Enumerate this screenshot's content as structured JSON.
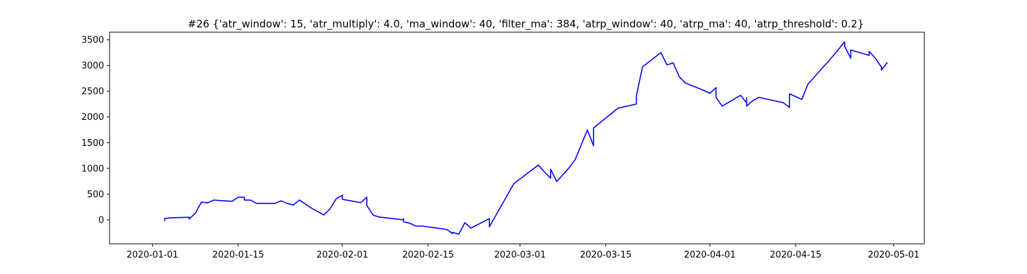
{
  "chart_data": {
    "type": "line",
    "title": "#26 {'atr_window': 15, 'atr_multiply': 4.0, 'ma_window': 40, 'filter_ma': 384, 'atrp_window': 40, 'atrp_ma': 40, 'atrp_threshold': 0.2}",
    "x": [
      "2020-01-03",
      "2020-01-03",
      "2020-01-03",
      "2020-01-04",
      "2020-01-07",
      "2020-01-07",
      "2020-01-08",
      "2020-01-09",
      "2020-01-10",
      "2020-01-11",
      "2020-01-14",
      "2020-01-15",
      "2020-01-16",
      "2020-01-16",
      "2020-01-17",
      "2020-01-18",
      "2020-01-21",
      "2020-01-22",
      "2020-01-23",
      "2020-01-24",
      "2020-01-25",
      "2020-01-27",
      "2020-01-29",
      "2020-01-30",
      "2020-01-31",
      "2020-02-01",
      "2020-02-01",
      "2020-02-04",
      "2020-02-05",
      "2020-02-05",
      "2020-02-05",
      "2020-02-06",
      "2020-02-07",
      "2020-02-11",
      "2020-02-11",
      "2020-02-11",
      "2020-02-12",
      "2020-02-13",
      "2020-02-14",
      "2020-02-18",
      "2020-02-19",
      "2020-02-19",
      "2020-02-20",
      "2020-02-21",
      "2020-02-22",
      "2020-02-25",
      "2020-02-25",
      "2020-02-29",
      "2020-03-04",
      "2020-03-05",
      "2020-03-06",
      "2020-03-06",
      "2020-03-07",
      "2020-03-09",
      "2020-03-10",
      "2020-03-12",
      "2020-03-13",
      "2020-03-13",
      "2020-03-17",
      "2020-03-20",
      "2020-03-20",
      "2020-03-21",
      "2020-03-24",
      "2020-03-25",
      "2020-03-26",
      "2020-03-27",
      "2020-03-28",
      "2020-03-31",
      "2020-04-01",
      "2020-04-02",
      "2020-04-02",
      "2020-04-03",
      "2020-04-06",
      "2020-04-07",
      "2020-04-07",
      "2020-04-07",
      "2020-04-08",
      "2020-04-09",
      "2020-04-13",
      "2020-04-14",
      "2020-04-14",
      "2020-04-14",
      "2020-04-14",
      "2020-04-16",
      "2020-04-17",
      "2020-04-21",
      "2020-04-23",
      "2020-04-23",
      "2020-04-24",
      "2020-04-24",
      "2020-04-27",
      "2020-04-27",
      "2020-04-28",
      "2020-04-29",
      "2020-04-29",
      "2020-04-30"
    ],
    "series": [
      {
        "color": "#0000ff",
        "values": [
          0,
          -15,
          25,
          40,
          50,
          15,
          130,
          345,
          330,
          385,
          360,
          440,
          440,
          385,
          385,
          320,
          320,
          370,
          320,
          290,
          385,
          225,
          95,
          215,
          410,
          480,
          400,
          335,
          440,
          345,
          280,
          95,
          55,
          0,
          25,
          -40,
          -65,
          -120,
          -120,
          -185,
          -265,
          -240,
          -280,
          -55,
          -160,
          25,
          -135,
          705,
          1065,
          930,
          810,
          985,
          745,
          1010,
          1170,
          1745,
          1440,
          1785,
          2170,
          2250,
          2410,
          2970,
          3250,
          3010,
          3050,
          2780,
          2660,
          2515,
          2460,
          2570,
          2380,
          2210,
          2420,
          2275,
          2370,
          2210,
          2315,
          2380,
          2275,
          2185,
          2340,
          2290,
          2450,
          2340,
          2635,
          3170,
          3460,
          3370,
          3140,
          3300,
          3195,
          3275,
          3140,
          2970,
          2915,
          3060
        ]
      }
    ],
    "xlim": [
      "2019-12-25",
      "2020-05-06"
    ],
    "xticks": [
      "2020-01-01",
      "2020-01-15",
      "2020-02-01",
      "2020-02-15",
      "2020-03-01",
      "2020-03-15",
      "2020-04-01",
      "2020-04-15",
      "2020-05-01"
    ],
    "ylim": [
      -466,
      3646
    ],
    "yticks": [
      0,
      500,
      1000,
      1500,
      2000,
      2500,
      3000,
      3500
    ]
  }
}
